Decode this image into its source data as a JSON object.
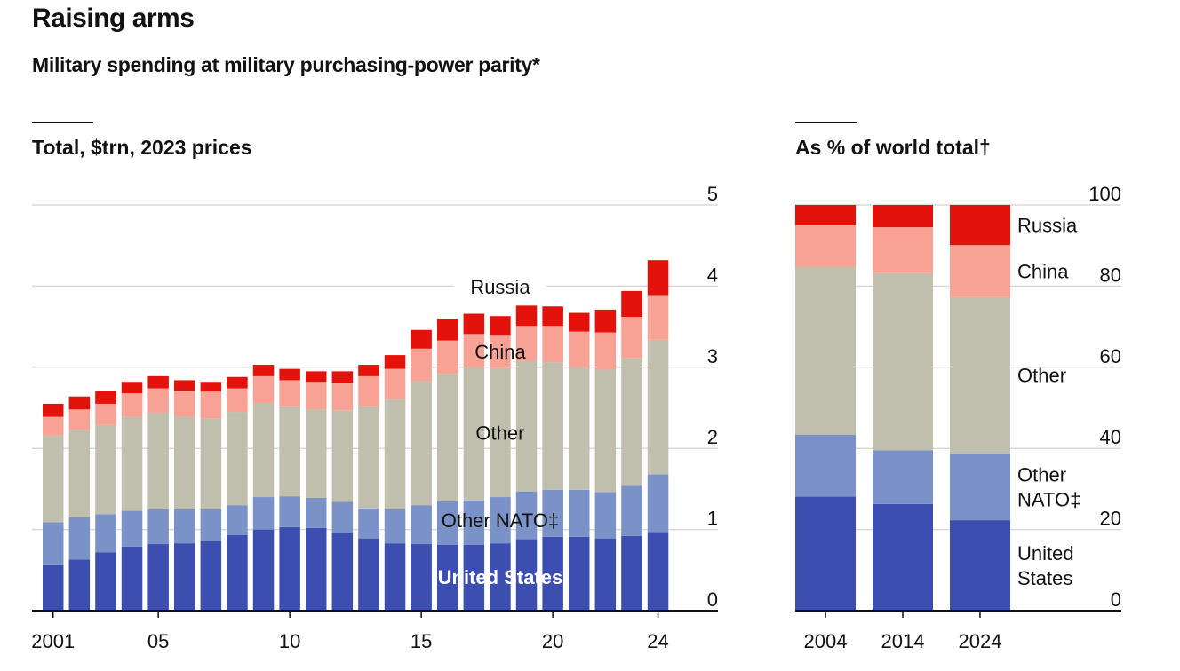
{
  "header": {
    "title": "Raising arms",
    "subtitle": "Military spending at military purchasing-power parity*"
  },
  "colors": {
    "United States": "#3c4eb0",
    "Other NATO": "#7b92c8",
    "Other": "#c0bfae",
    "China": "#f8a296",
    "Russia": "#e3120b",
    "grid": "#d9d9d9",
    "axis": "#121212"
  },
  "chart_data": [
    {
      "type": "bar",
      "stacked": true,
      "title": "Total, $trn, 2023 prices",
      "xlabel": "",
      "ylabel": "",
      "ylim": [
        0,
        5
      ],
      "yticks": [
        "0",
        "1",
        "2",
        "3",
        "4",
        "5"
      ],
      "categories": [
        2001,
        2002,
        2003,
        2004,
        2005,
        2006,
        2007,
        2008,
        2009,
        2010,
        2011,
        2012,
        2013,
        2014,
        2015,
        2016,
        2017,
        2018,
        2019,
        2020,
        2021,
        2022,
        2023,
        2024
      ],
      "xtick_labels": [
        {
          "year": 2001,
          "label": "2001"
        },
        {
          "year": 2005,
          "label": "05"
        },
        {
          "year": 2010,
          "label": "10"
        },
        {
          "year": 2015,
          "label": "15"
        },
        {
          "year": 2020,
          "label": "20"
        },
        {
          "year": 2024,
          "label": "24"
        }
      ],
      "series_labels": [
        "United States",
        "Other NATO‡",
        "Other",
        "China",
        "Russia"
      ],
      "series": [
        {
          "name": "United States",
          "values": [
            0.56,
            0.63,
            0.72,
            0.79,
            0.82,
            0.83,
            0.86,
            0.93,
            1.0,
            1.03,
            1.02,
            0.96,
            0.89,
            0.83,
            0.82,
            0.81,
            0.81,
            0.83,
            0.88,
            0.91,
            0.91,
            0.89,
            0.92,
            0.97
          ]
        },
        {
          "name": "Other NATO",
          "values": [
            0.53,
            0.52,
            0.47,
            0.44,
            0.43,
            0.42,
            0.39,
            0.37,
            0.4,
            0.38,
            0.37,
            0.38,
            0.37,
            0.42,
            0.48,
            0.54,
            0.55,
            0.57,
            0.59,
            0.58,
            0.58,
            0.57,
            0.62,
            0.71
          ]
        },
        {
          "name": "Other",
          "values": [
            1.07,
            1.08,
            1.1,
            1.16,
            1.19,
            1.14,
            1.12,
            1.15,
            1.16,
            1.11,
            1.09,
            1.13,
            1.26,
            1.36,
            1.53,
            1.57,
            1.64,
            1.59,
            1.61,
            1.57,
            1.51,
            1.51,
            1.57,
            1.66
          ]
        },
        {
          "name": "China",
          "values": [
            0.23,
            0.25,
            0.26,
            0.29,
            0.3,
            0.32,
            0.33,
            0.29,
            0.33,
            0.32,
            0.34,
            0.34,
            0.37,
            0.37,
            0.4,
            0.41,
            0.41,
            0.41,
            0.43,
            0.45,
            0.44,
            0.46,
            0.51,
            0.55
          ]
        },
        {
          "name": "Russia",
          "values": [
            0.16,
            0.16,
            0.16,
            0.14,
            0.15,
            0.13,
            0.12,
            0.14,
            0.14,
            0.14,
            0.13,
            0.14,
            0.14,
            0.17,
            0.23,
            0.27,
            0.25,
            0.23,
            0.25,
            0.24,
            0.23,
            0.28,
            0.32,
            0.43
          ]
        }
      ]
    },
    {
      "type": "bar",
      "stacked": true,
      "title": "As % of world total†",
      "xlabel": "",
      "ylabel": "",
      "ylim": [
        0,
        100
      ],
      "yticks": [
        "0",
        "20",
        "40",
        "60",
        "80",
        "100"
      ],
      "categories": [
        "2004",
        "2014",
        "2024"
      ],
      "series_labels": [
        "United States",
        "Other NATO‡",
        "Other",
        "China",
        "Russia"
      ],
      "series": [
        {
          "name": "United States",
          "values": [
            28.1,
            26.3,
            22.3
          ]
        },
        {
          "name": "Other NATO",
          "values": [
            15.3,
            13.2,
            16.5
          ]
        },
        {
          "name": "Other",
          "values": [
            41.3,
            43.7,
            38.5
          ]
        },
        {
          "name": "China",
          "values": [
            10.3,
            11.3,
            12.8
          ]
        },
        {
          "name": "Russia",
          "values": [
            5.0,
            5.5,
            9.9
          ]
        }
      ]
    }
  ]
}
